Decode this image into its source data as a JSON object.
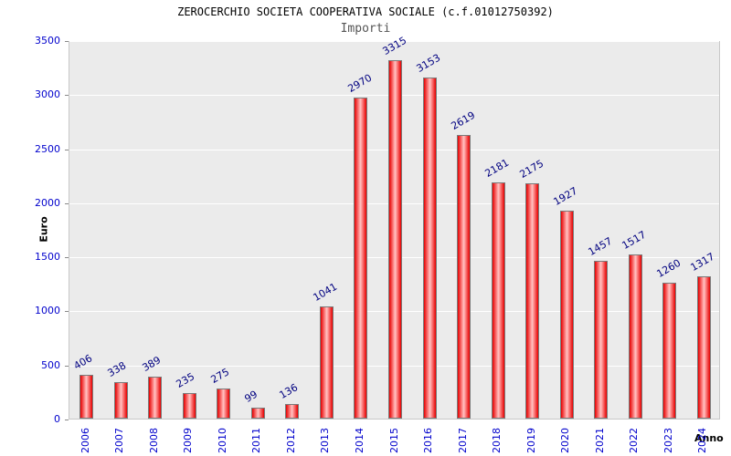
{
  "header": {
    "title": "ZEROCERCHIO SOCIETA COOPERATIVA SOCIALE (c.f.01012750392)",
    "subtitle": "Importi"
  },
  "chart_data": {
    "type": "bar",
    "title": "ZEROCERCHIO SOCIETA COOPERATIVA SOCIALE (c.f.01012750392)",
    "subtitle": "Importi",
    "xlabel": "Anno",
    "ylabel": "Euro",
    "categories": [
      "2006",
      "2007",
      "2008",
      "2009",
      "2010",
      "2011",
      "2012",
      "2013",
      "2014",
      "2015",
      "2016",
      "2017",
      "2018",
      "2019",
      "2020",
      "2021",
      "2022",
      "2023",
      "2024"
    ],
    "values": [
      406,
      338,
      389,
      235,
      275,
      99,
      136,
      1041,
      2970,
      3315,
      3153,
      2619,
      2181,
      2175,
      1927,
      1457,
      1517,
      1260,
      1317
    ],
    "ylim": [
      0,
      3500
    ],
    "yticks": [
      0,
      500,
      1000,
      1500,
      2000,
      2500,
      3000,
      3500
    ],
    "grid": true,
    "legend": "none",
    "bar_color": "#e60000",
    "bar_highlight_color": "#ffc4c4",
    "value_label_color": "#000080",
    "tick_label_color": "#0000cc",
    "plot_background": "#ebebeb",
    "gridline_color": "#ffffff"
  }
}
